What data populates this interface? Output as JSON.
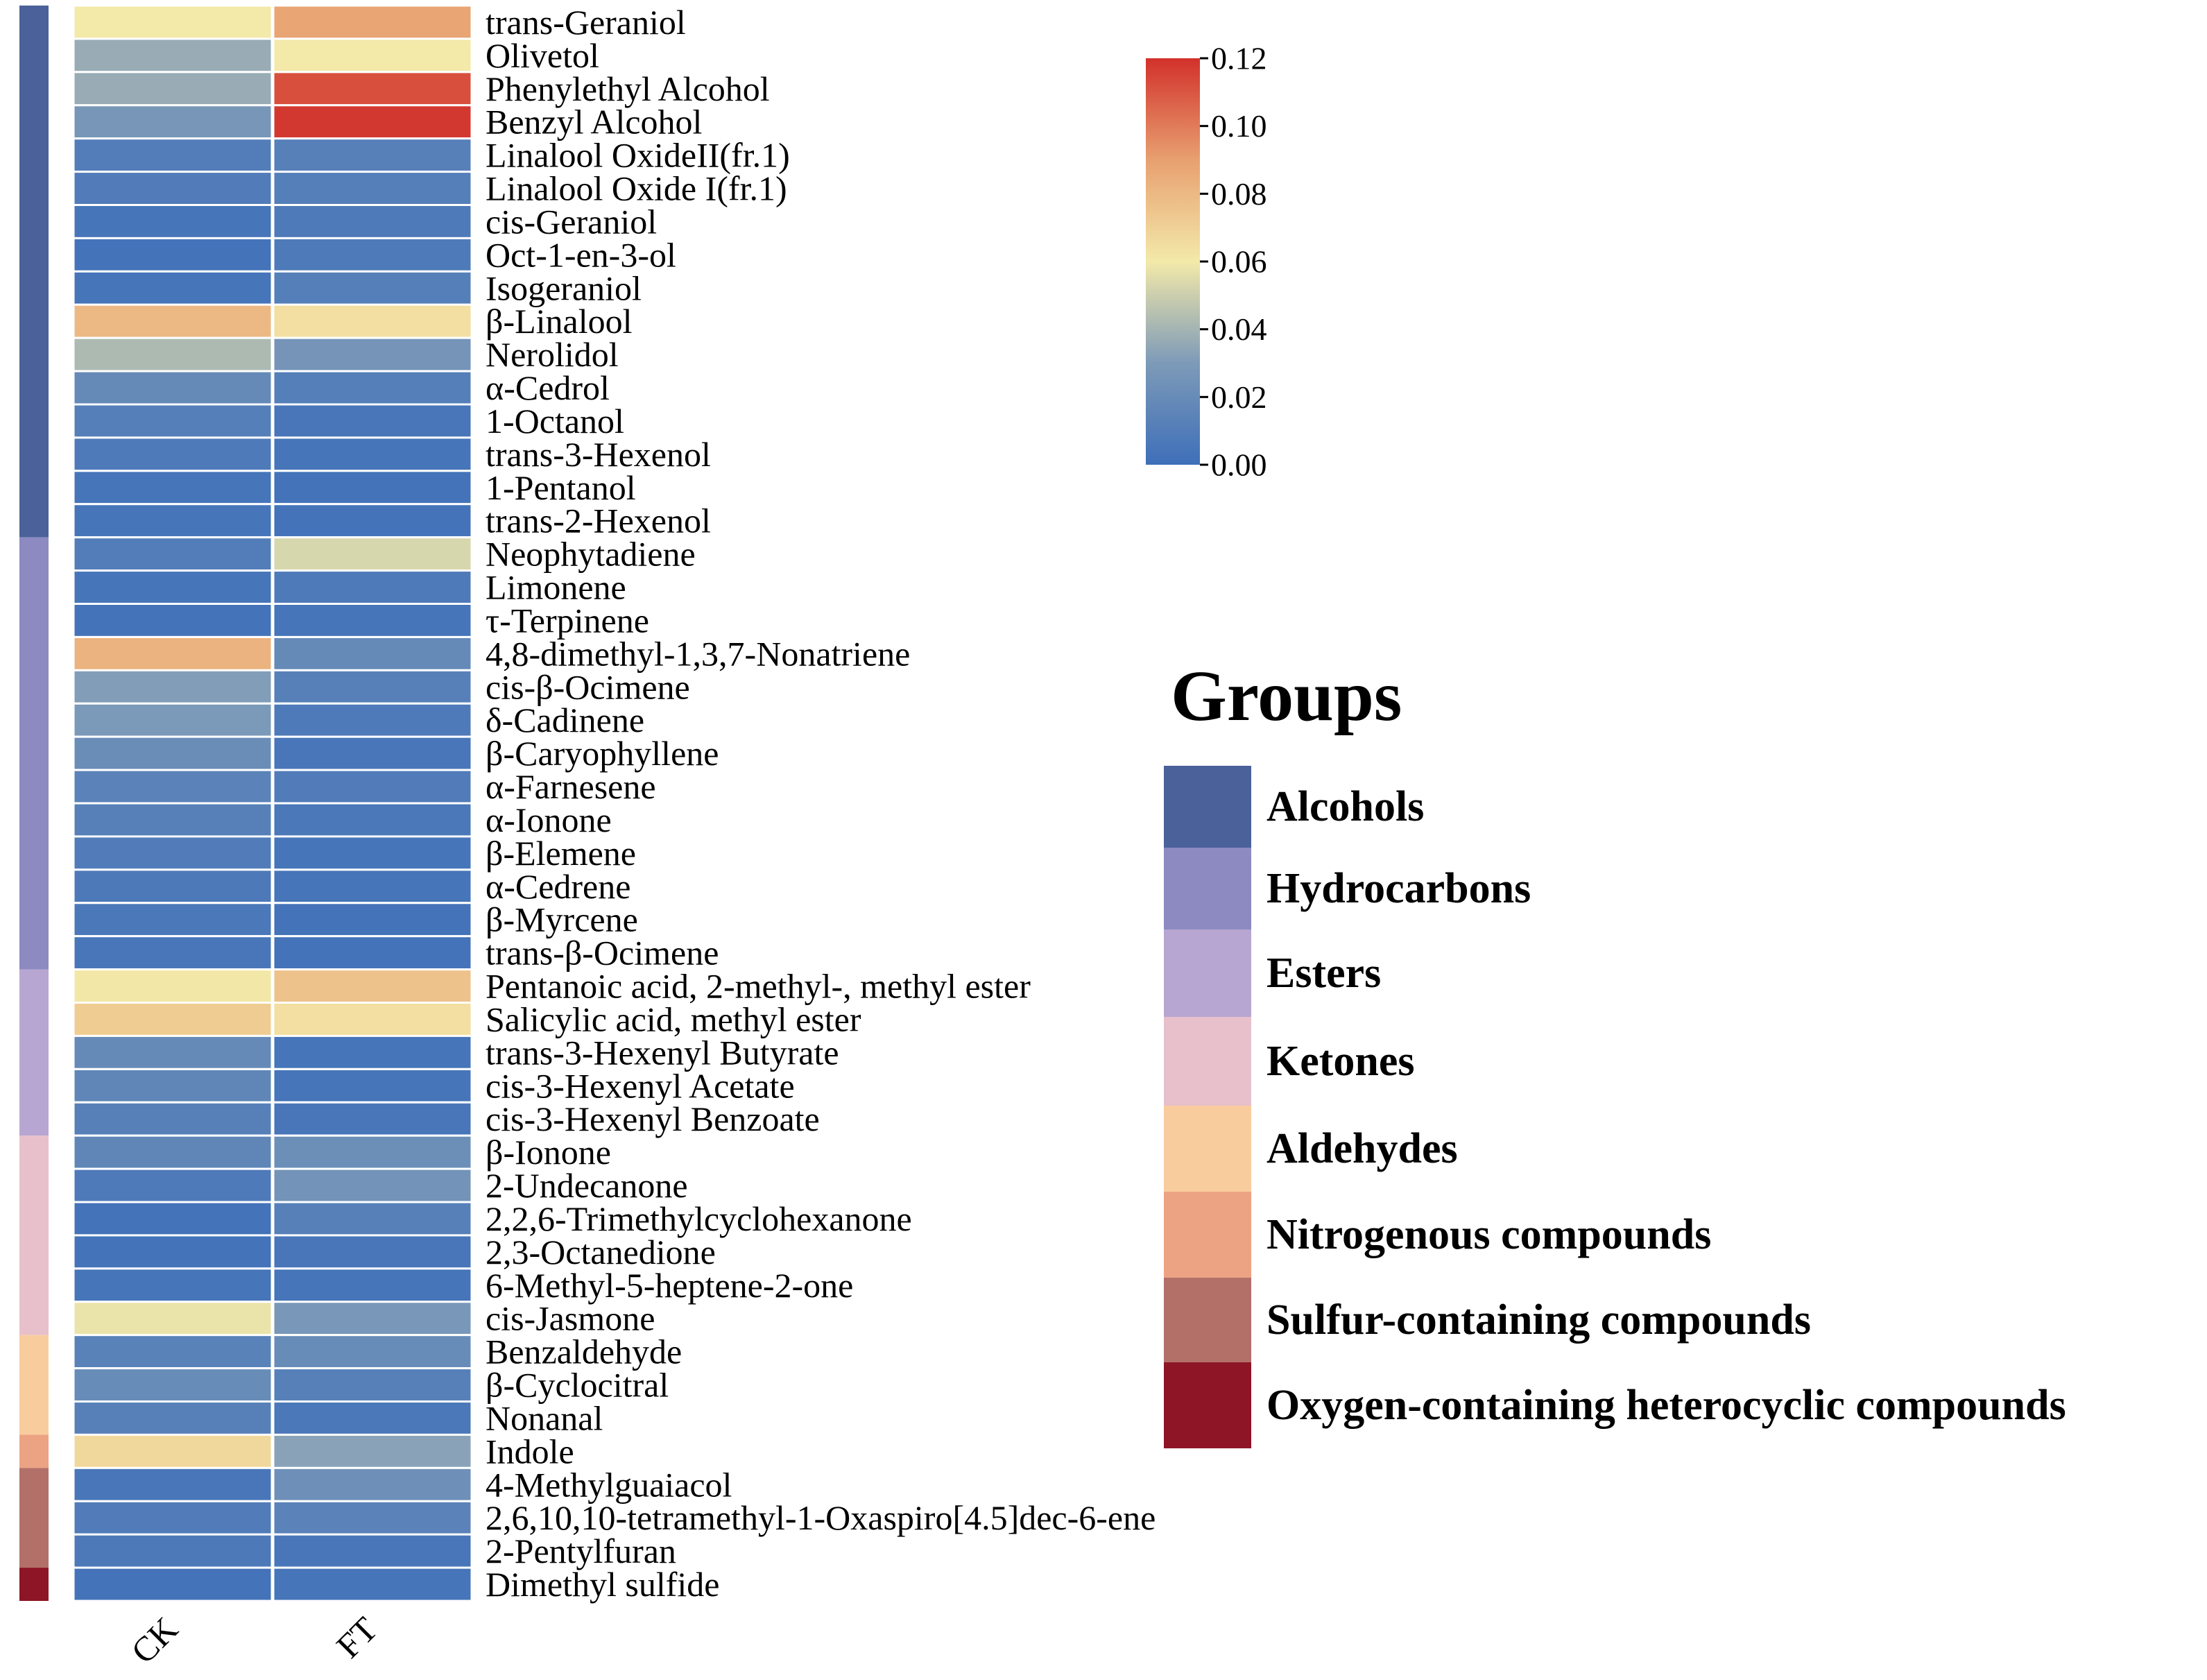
{
  "chart_data": {
    "type": "heatmap",
    "title": "",
    "columns": [
      "CK",
      "FT"
    ],
    "rows": [
      {
        "name": "trans-Geraniol",
        "group": "Alcohols",
        "values": [
          0.06,
          0.088
        ]
      },
      {
        "name": "Olivetol",
        "group": "Alcohols",
        "values": [
          0.037,
          0.06
        ]
      },
      {
        "name": "Phenylethyl Alcohol",
        "group": "Alcohols",
        "values": [
          0.037,
          0.112
        ]
      },
      {
        "name": "Benzyl Alcohol",
        "group": "Alcohols",
        "values": [
          0.027,
          0.118
        ]
      },
      {
        "name": "Linalool OxideII(fr.1)",
        "group": "Alcohols",
        "values": [
          0.01,
          0.012
        ]
      },
      {
        "name": "Linalool Oxide I(fr.1)",
        "group": "Alcohols",
        "values": [
          0.009,
          0.011
        ]
      },
      {
        "name": "cis-Geraniol",
        "group": "Alcohols",
        "values": [
          0.004,
          0.008
        ]
      },
      {
        "name": "Oct-1-en-3-ol",
        "group": "Alcohols",
        "values": [
          0.003,
          0.008
        ]
      },
      {
        "name": "Isogeraniol",
        "group": "Alcohols",
        "values": [
          0.004,
          0.011
        ]
      },
      {
        "name": "β-Linalool",
        "group": "Alcohols",
        "values": [
          0.08,
          0.064
        ]
      },
      {
        "name": "Nerolidol",
        "group": "Alcohols",
        "values": [
          0.042,
          0.026
        ]
      },
      {
        "name": "α-Cedrol",
        "group": "Alcohols",
        "values": [
          0.019,
          0.011
        ]
      },
      {
        "name": "1-Octanol",
        "group": "Alcohols",
        "values": [
          0.011,
          0.005
        ]
      },
      {
        "name": "trans-3-Hexenol",
        "group": "Alcohols",
        "values": [
          0.008,
          0.004
        ]
      },
      {
        "name": "1-Pentanol",
        "group": "Alcohols",
        "values": [
          0.004,
          0.003
        ]
      },
      {
        "name": "trans-2-Hexenol",
        "group": "Alcohols",
        "values": [
          0.004,
          0.003
        ]
      },
      {
        "name": "Neophytadiene",
        "group": "Hydrocarbons",
        "values": [
          0.01,
          0.053
        ]
      },
      {
        "name": "Limonene",
        "group": "Hydrocarbons",
        "values": [
          0.004,
          0.008
        ]
      },
      {
        "name": "τ-Terpinene",
        "group": "Hydrocarbons",
        "values": [
          0.003,
          0.004
        ]
      },
      {
        "name": "4,8-dimethyl-1,3,7-Nonatriene",
        "group": "Hydrocarbons",
        "values": [
          0.082,
          0.019
        ]
      },
      {
        "name": "cis-β-Ocimene",
        "group": "Hydrocarbons",
        "values": [
          0.031,
          0.012
        ]
      },
      {
        "name": "δ-Cadinene",
        "group": "Hydrocarbons",
        "values": [
          0.029,
          0.008
        ]
      },
      {
        "name": "β-Caryophyllene",
        "group": "Hydrocarbons",
        "values": [
          0.021,
          0.005
        ]
      },
      {
        "name": "α-Farnesene",
        "group": "Hydrocarbons",
        "values": [
          0.014,
          0.009
        ]
      },
      {
        "name": "α-Ionone",
        "group": "Hydrocarbons",
        "values": [
          0.012,
          0.006
        ]
      },
      {
        "name": "β-Elemene",
        "group": "Hydrocarbons",
        "values": [
          0.009,
          0.004
        ]
      },
      {
        "name": "α-Cedrene",
        "group": "Hydrocarbons",
        "values": [
          0.007,
          0.004
        ]
      },
      {
        "name": "β-Myrcene",
        "group": "Hydrocarbons",
        "values": [
          0.006,
          0.003
        ]
      },
      {
        "name": "trans-β-Ocimene",
        "group": "Hydrocarbons",
        "values": [
          0.005,
          0.003
        ]
      },
      {
        "name": "Pentanoic acid, 2-methyl-, methyl ester",
        "group": "Esters",
        "values": [
          0.061,
          0.076
        ]
      },
      {
        "name": "Salicylic acid, methyl ester",
        "group": "Esters",
        "values": [
          0.072,
          0.064
        ]
      },
      {
        "name": "trans-3-Hexenyl Butyrate",
        "group": "Esters",
        "values": [
          0.019,
          0.004
        ]
      },
      {
        "name": "cis-3-Hexenyl Acetate",
        "group": "Esters",
        "values": [
          0.016,
          0.004
        ]
      },
      {
        "name": "cis-3-Hexenyl Benzoate",
        "group": "Esters",
        "values": [
          0.012,
          0.005
        ]
      },
      {
        "name": "β-Ionone",
        "group": "Ketones",
        "values": [
          0.016,
          0.022
        ]
      },
      {
        "name": "2-Undecanone",
        "group": "Ketones",
        "values": [
          0.008,
          0.025
        ]
      },
      {
        "name": "2,2,6-Trimethylcyclohexanone",
        "group": "Ketones",
        "values": [
          0.003,
          0.012
        ]
      },
      {
        "name": "2,3-Octanedione",
        "group": "Ketones",
        "values": [
          0.003,
          0.005
        ]
      },
      {
        "name": "6-Methyl-5-heptene-2-one",
        "group": "Ketones",
        "values": [
          0.004,
          0.004
        ]
      },
      {
        "name": "cis-Jasmone",
        "group": "Ketones",
        "values": [
          0.058,
          0.028
        ]
      },
      {
        "name": "Benzaldehyde",
        "group": "Aldehydes",
        "values": [
          0.013,
          0.02
        ]
      },
      {
        "name": "β-Cyclocitral",
        "group": "Aldehydes",
        "values": [
          0.02,
          0.012
        ]
      },
      {
        "name": "Nonanal",
        "group": "Aldehydes",
        "values": [
          0.012,
          0.006
        ]
      },
      {
        "name": "Indole",
        "group": "Nitrogenous compounds",
        "values": [
          0.067,
          0.033
        ]
      },
      {
        "name": "4-Methylguaiacol",
        "group": "Sulfur-containing compounds",
        "values": [
          0.005,
          0.023
        ]
      },
      {
        "name": "2,6,10,10-tetramethyl-1-Oxaspiro[4.5]dec-6-ene",
        "group": "Sulfur-containing compounds",
        "values": [
          0.009,
          0.014
        ]
      },
      {
        "name": "2-Pentylfuran",
        "group": "Sulfur-containing compounds",
        "values": [
          0.007,
          0.005
        ]
      },
      {
        "name": "Dimethyl sulfide",
        "group": "Oxygen-containing heterocyclic compounds",
        "values": [
          0.003,
          0.004
        ]
      }
    ],
    "colorbar": {
      "range": [
        0.0,
        0.12
      ],
      "ticks": [
        "0.00",
        "0.02",
        "0.04",
        "0.06",
        "0.08",
        "0.10",
        "0.12"
      ],
      "colormap": "RdYlBu reversed",
      "stops": [
        "#3e6fb9",
        "#7d9ab8",
        "#f3e9a9",
        "#e8a070",
        "#d2312b"
      ]
    },
    "legend": {
      "title": "Groups",
      "position": "right",
      "items": [
        {
          "label": "Alcohols",
          "color": "#4b6199"
        },
        {
          "label": "Hydrocarbons",
          "color": "#8c8ac1"
        },
        {
          "label": "Esters",
          "color": "#b7a6d1"
        },
        {
          "label": "Ketones",
          "color": "#e7c0cb"
        },
        {
          "label": "Aldehydes",
          "color": "#f9cc9e"
        },
        {
          "label": "Nitrogenous compounds",
          "color": "#eca384"
        },
        {
          "label": "Sulfur-containing compounds",
          "color": "#b27069"
        },
        {
          "label": "Oxygen-containing heterocyclic compounds",
          "color": "#8d1525"
        }
      ]
    }
  }
}
